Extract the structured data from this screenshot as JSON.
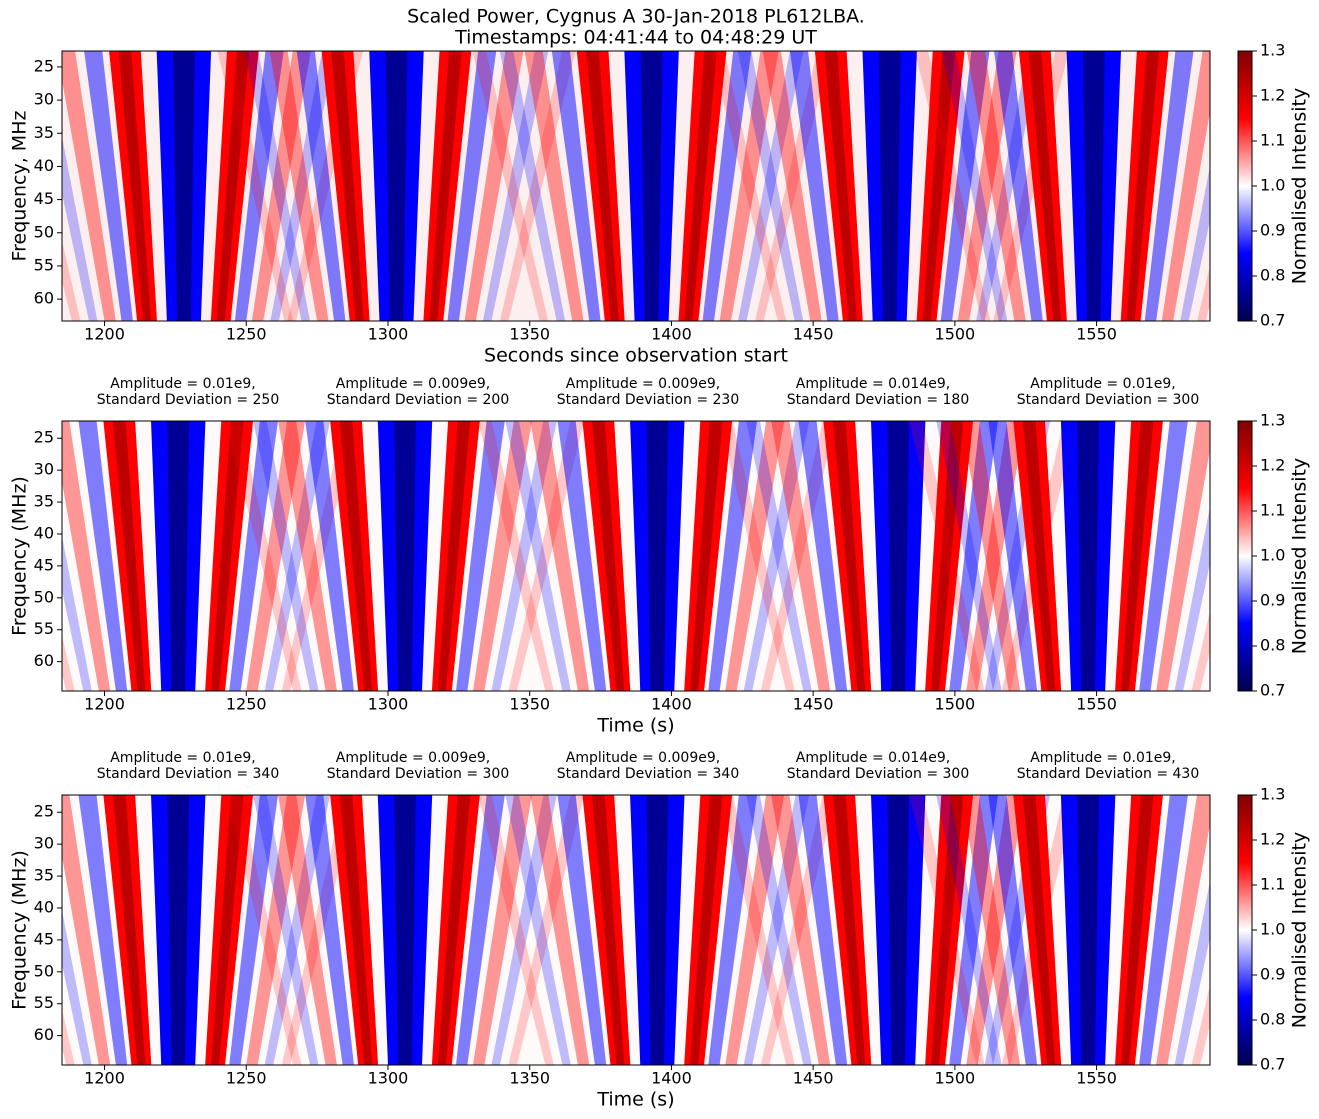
{
  "chart_data": [
    {
      "type": "heatmap",
      "title": "Scaled Power, Cygnus A 30-Jan-2018 PL612LBA.",
      "subtitle": "Timestamps: 04:41:44 to 04:48:29 UT",
      "xlabel": "Seconds since observation start",
      "ylabel": "Frequency, MHz",
      "x": [
        1228,
        1303,
        1393,
        1477,
        1549
      ],
      "xlim": [
        1185,
        1590
      ],
      "ylim": [
        63.3,
        22.6
      ],
      "xticks": [
        1200,
        1250,
        1300,
        1350,
        1400,
        1450,
        1500,
        1550
      ],
      "yticks": [
        25,
        30,
        35,
        40,
        45,
        50,
        55,
        60
      ],
      "colormap": [
        "#00004d",
        "#0000ff",
        "#ffffff",
        "#ff0000",
        "#800000"
      ],
      "colorbar": {
        "label": "Normalised Intensity",
        "lim": [
          0.7,
          1.3
        ],
        "ticks": [
          0.7,
          0.8,
          0.9,
          {
            "value": 1,
            "label": "1.0"
          },
          1.1,
          1.2,
          1.3
        ]
      }
    },
    {
      "type": "heatmap",
      "annotations": [
        [
          "Amplitude = 0.01e9,",
          "Standard Deviation = 250"
        ],
        [
          "Amplitude = 0.009e9,",
          "Standard Deviation = 200"
        ],
        [
          "Amplitude = 0.009e9,",
          "Standard Deviation = 230"
        ],
        [
          "Amplitude = 0.014e9,",
          "Standard Deviation = 180"
        ],
        [
          "Amplitude = 0.01e9,",
          "Standard Deviation = 300"
        ]
      ],
      "xlabel": "Time (s)",
      "ylabel": "Frequency (MHz)",
      "x": [
        1226,
        1306,
        1395,
        1480,
        1547
      ],
      "xlim": [
        1185,
        1590
      ],
      "ylim": [
        64.6,
        22.3
      ],
      "xticks": [
        1200,
        1250,
        1300,
        1350,
        1400,
        1450,
        1500,
        1550
      ],
      "yticks": [
        25,
        30,
        35,
        40,
        45,
        50,
        55,
        60
      ],
      "colormap": [
        "#00004d",
        "#0000ff",
        "#ffffff",
        "#ff0000",
        "#800000"
      ],
      "colorbar": {
        "label": "Normalised Intensity",
        "lim": [
          0.7,
          1.3
        ],
        "ticks": [
          0.7,
          0.8,
          0.9,
          {
            "value": 1,
            "label": "1.0"
          },
          1.1,
          1.2,
          1.3
        ]
      }
    },
    {
      "type": "heatmap",
      "annotations": [
        [
          "Amplitude = 0.01e9,",
          "Standard Deviation = 340"
        ],
        [
          "Amplitude = 0.009e9,",
          "Standard Deviation = 300"
        ],
        [
          "Amplitude = 0.009e9,",
          "Standard Deviation = 340"
        ],
        [
          "Amplitude = 0.014e9,",
          "Standard Deviation = 300"
        ],
        [
          "Amplitude = 0.01e9,",
          "Standard Deviation = 430"
        ]
      ],
      "xlabel": "Time (s)",
      "ylabel": "Frequency (MHz)",
      "x": [
        1226,
        1306,
        1395,
        1480,
        1547
      ],
      "xlim": [
        1185,
        1590
      ],
      "ylim": [
        64.6,
        22.3
      ],
      "xticks": [
        1200,
        1250,
        1300,
        1350,
        1400,
        1450,
        1500,
        1550
      ],
      "yticks": [
        25,
        30,
        35,
        40,
        45,
        50,
        55,
        60
      ],
      "colormap": [
        "#00004d",
        "#0000ff",
        "#ffffff",
        "#ff0000",
        "#800000"
      ],
      "colorbar": {
        "label": "Normalised Intensity",
        "lim": [
          0.7,
          1.3
        ],
        "ticks": [
          0.7,
          0.8,
          0.9,
          {
            "value": 1,
            "label": "1.0"
          },
          1.1,
          1.2,
          1.3
        ]
      }
    }
  ]
}
